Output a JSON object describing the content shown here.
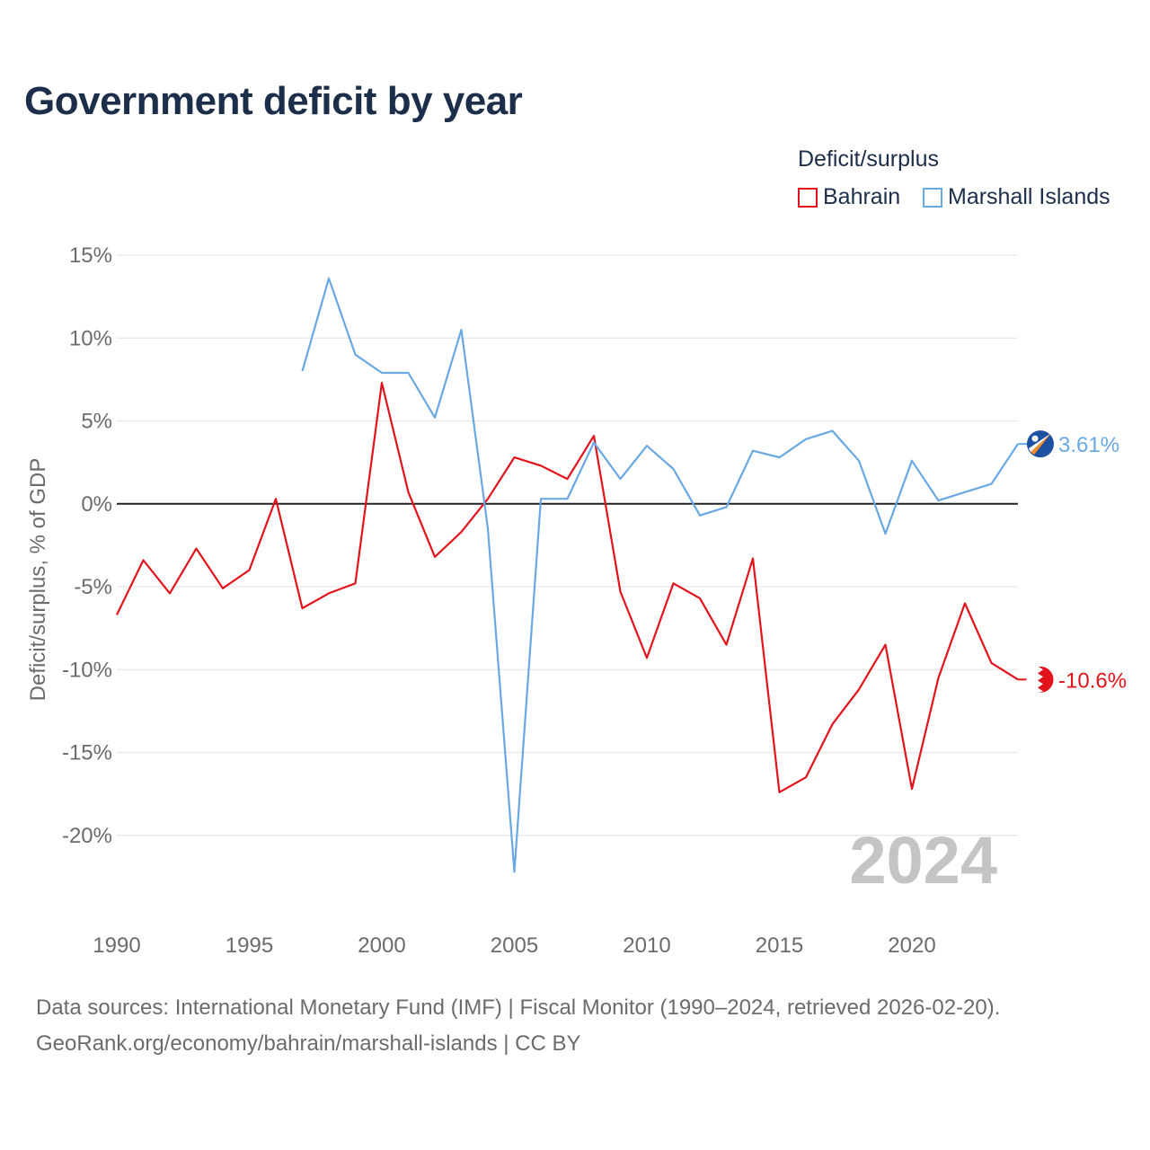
{
  "title": "Government deficit by year",
  "legend": {
    "title": "Deficit/surplus",
    "items": [
      {
        "label": "Bahrain",
        "color": "#e3131b"
      },
      {
        "label": "Marshall Islands",
        "color": "#6aa8e3"
      }
    ]
  },
  "footer": {
    "line1": "Data sources: International Monetary Fund (IMF) | Fiscal Monitor (1990–2024, retrieved 2026-02-20).",
    "line2": "GeoRank.org/economy/bahrain/marshall-islands | CC BY"
  },
  "chart_data": {
    "type": "line",
    "title": "Government deficit by year",
    "xlabel": "",
    "ylabel": "Deficit/surplus, % of GDP",
    "xlim": [
      1990,
      2024
    ],
    "ylim": [
      -25,
      15
    ],
    "yticks": [
      15,
      10,
      5,
      0,
      -5,
      -10,
      -15,
      -20
    ],
    "ytick_labels": [
      "15%",
      "10%",
      "5%",
      "0%",
      "-5%",
      "-10%",
      "-15%",
      "-20%"
    ],
    "xticks": [
      1990,
      1995,
      2000,
      2005,
      2010,
      2015,
      2020
    ],
    "xtick_labels": [
      "1990",
      "1995",
      "2000",
      "2005",
      "2010",
      "2015",
      "2020"
    ],
    "watermark_year": "2024",
    "series": [
      {
        "name": "Bahrain",
        "color": "#e3131b",
        "end_label": "-10.6%",
        "x": [
          1990,
          1991,
          1992,
          1993,
          1994,
          1995,
          1996,
          1997,
          1998,
          1999,
          2000,
          2001,
          2002,
          2003,
          2004,
          2005,
          2006,
          2007,
          2008,
          2009,
          2010,
          2011,
          2012,
          2013,
          2014,
          2015,
          2016,
          2017,
          2018,
          2019,
          2020,
          2021,
          2022,
          2023,
          2024
        ],
        "values": [
          -6.7,
          -3.4,
          -5.4,
          -2.7,
          -5.1,
          -4.0,
          0.3,
          -6.3,
          -5.4,
          -4.8,
          7.3,
          0.7,
          -3.2,
          -1.7,
          0.3,
          2.8,
          2.3,
          1.5,
          4.1,
          -5.3,
          -9.3,
          -4.8,
          -5.7,
          -8.5,
          -3.3,
          -17.4,
          -16.5,
          -13.3,
          -11.2,
          -8.5,
          -17.2,
          -10.5,
          -6.0,
          -9.6,
          -10.6
        ]
      },
      {
        "name": "Marshall Islands",
        "color": "#6aa8e3",
        "end_label": "3.61%",
        "x": [
          1997,
          1998,
          1999,
          2000,
          2001,
          2002,
          2003,
          2004,
          2005,
          2006,
          2007,
          2008,
          2009,
          2010,
          2011,
          2012,
          2013,
          2014,
          2015,
          2016,
          2017,
          2018,
          2019,
          2020,
          2021,
          2022,
          2023,
          2024
        ],
        "values": [
          8.0,
          13.6,
          9.0,
          7.9,
          7.9,
          5.2,
          10.5,
          -1.5,
          -22.2,
          0.3,
          0.3,
          3.7,
          1.5,
          3.5,
          2.1,
          -0.7,
          -0.2,
          3.2,
          2.8,
          3.9,
          4.4,
          2.6,
          -1.8,
          2.6,
          0.2,
          0.7,
          1.2,
          3.61
        ]
      }
    ]
  }
}
